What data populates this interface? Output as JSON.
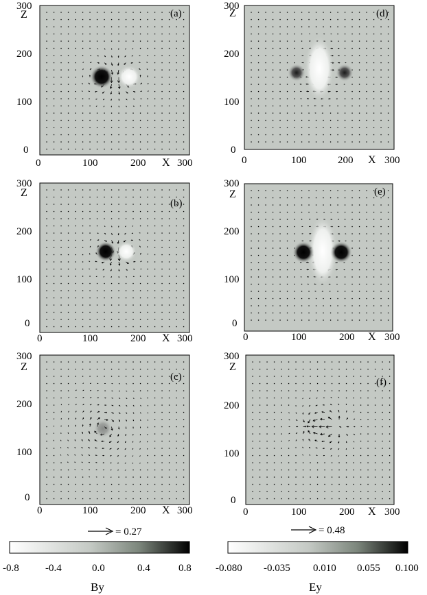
{
  "panels": [
    {
      "tag": "(a)",
      "field": "By",
      "xlabel": "X",
      "ylabel": "Z",
      "xticks": [
        "0",
        "100",
        "200",
        "300"
      ],
      "yticks": [
        "0",
        "100",
        "200",
        "300"
      ]
    },
    {
      "tag": "(b)",
      "field": "By",
      "xlabel": "X",
      "ylabel": "Z",
      "xticks": [
        "0",
        "100",
        "200",
        "300"
      ],
      "yticks": [
        "0",
        "100",
        "200",
        "300"
      ]
    },
    {
      "tag": "(c)",
      "field": "By",
      "xlabel": "X",
      "ylabel": "Z",
      "xticks": [
        "0",
        "100",
        "200",
        "300"
      ],
      "yticks": [
        "0",
        "100",
        "200",
        "300"
      ]
    },
    {
      "tag": "(d)",
      "field": "Ey",
      "xlabel": "X",
      "ylabel": "Z",
      "xticks": [
        "0",
        "100",
        "200",
        "300"
      ],
      "yticks": [
        "0",
        "100",
        "200",
        "300"
      ]
    },
    {
      "tag": "(e)",
      "field": "Ey",
      "xlabel": "X",
      "ylabel": "Z",
      "xticks": [
        "0",
        "100",
        "200",
        "300"
      ],
      "yticks": [
        "0",
        "100",
        "200",
        "300"
      ]
    },
    {
      "tag": "(f)",
      "field": "Ey",
      "xlabel": "X",
      "ylabel": "Z",
      "xticks": [
        "0",
        "100",
        "200",
        "300"
      ],
      "yticks": [
        "0",
        "100",
        "200",
        "300"
      ]
    }
  ],
  "colorbars": [
    {
      "label": "By",
      "ticks": [
        "-0.8",
        "-0.4",
        "0.0",
        "0.4",
        "0.8"
      ],
      "arrow_scale": "= 0.27",
      "range": [
        -0.8,
        0.8
      ]
    },
    {
      "label": "Ey",
      "ticks": [
        "-0.080",
        "-0.035",
        "0.010",
        "0.055",
        "0.100"
      ],
      "arrow_scale": "= 0.48",
      "range": [
        -0.08,
        0.1
      ]
    }
  ],
  "colors": {
    "background_level": "#c4c9c4",
    "high": "#000000",
    "low": "#ffffff"
  }
}
